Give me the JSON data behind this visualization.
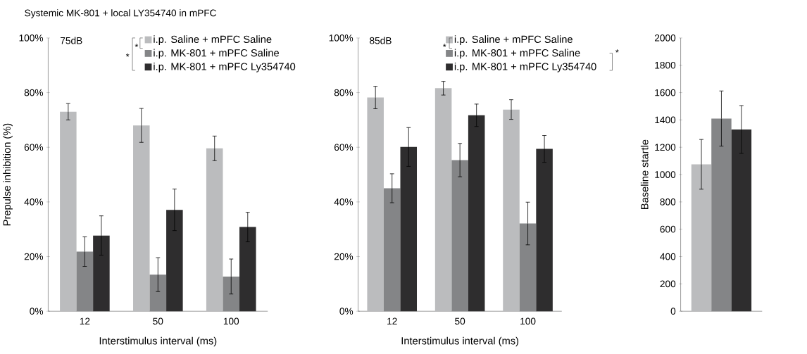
{
  "chart_data": [
    {
      "type": "bar",
      "title": "Systemic MK-801 + local LY354740 in mPFC",
      "xlabel": "Interstimulus interval (ms)",
      "ylabel": "Prepulse inhibition (%)",
      "categories": [
        "12",
        "50",
        "100"
      ],
      "series": [
        {
          "name": "i.p. Saline + mPFC Saline",
          "color": "#bbbcbe",
          "values": [
            73.0,
            68.0,
            59.6
          ],
          "errors": [
            3.0,
            6.2,
            4.5
          ]
        },
        {
          "name": "i.p. MK-801 + mPFC Saline",
          "color": "#848587",
          "values": [
            21.8,
            13.4,
            12.7
          ],
          "errors": [
            5.4,
            6.2,
            6.4
          ]
        },
        {
          "name": "i.p. MK-801 + mPFC Ly354740",
          "color": "#2e2d2e",
          "values": [
            27.7,
            37.1,
            30.8
          ],
          "errors": [
            7.2,
            7.6,
            5.4
          ]
        }
      ],
      "ylim": [
        0,
        100
      ],
      "yticks": [
        {
          "value": 0,
          "label": "0%"
        },
        {
          "value": 20,
          "label": "20%"
        },
        {
          "value": 40,
          "label": "40%"
        },
        {
          "value": 60,
          "label": "60%"
        },
        {
          "value": 80,
          "label": "80%"
        },
        {
          "value": 100,
          "label": "100%"
        }
      ],
      "legend": "top right",
      "annotations": [
        "75dB",
        "*",
        "*"
      ]
    },
    {
      "type": "bar",
      "xlabel": "Interstimulus interval (ms)",
      "categories": [
        "12",
        "50",
        "100"
      ],
      "series": [
        {
          "name": "i.p. Saline + mPFC Saline",
          "color": "#bbbcbe",
          "values": [
            78.2,
            81.6,
            73.8
          ],
          "errors": [
            4.1,
            2.5,
            3.6
          ]
        },
        {
          "name": "i.p. MK-801 + mPFC Saline",
          "color": "#848587",
          "values": [
            45.0,
            55.3,
            32.1
          ],
          "errors": [
            5.3,
            6.1,
            7.8
          ]
        },
        {
          "name": "i.p. MK-801 + mPFC Ly354740",
          "color": "#2e2d2e",
          "values": [
            60.1,
            71.7,
            59.4
          ],
          "errors": [
            7.1,
            4.1,
            4.9
          ]
        }
      ],
      "ylim": [
        0,
        100
      ],
      "yticks": [
        {
          "value": 0,
          "label": "0%"
        },
        {
          "value": 20,
          "label": "20%"
        },
        {
          "value": 40,
          "label": "40%"
        },
        {
          "value": 60,
          "label": "60%"
        },
        {
          "value": 80,
          "label": "80%"
        },
        {
          "value": 100,
          "label": "100%"
        }
      ],
      "legend": "top right",
      "annotations": [
        "85dB",
        "*",
        "*"
      ]
    },
    {
      "type": "bar",
      "ylabel": "Baseline startle",
      "categories": [
        null
      ],
      "series": [
        {
          "color": "#bbbcbe",
          "values": [
            1075
          ],
          "errors": [
            182
          ]
        },
        {
          "color": "#848587",
          "values": [
            1410
          ],
          "errors": [
            202
          ]
        },
        {
          "color": "#2e2d2e",
          "values": [
            1330
          ],
          "errors": [
            175
          ]
        }
      ],
      "ylim": [
        0,
        2000
      ],
      "yticks": [
        0,
        200,
        400,
        600,
        800,
        1000,
        1200,
        1400,
        1600,
        1800,
        2000
      ]
    }
  ]
}
